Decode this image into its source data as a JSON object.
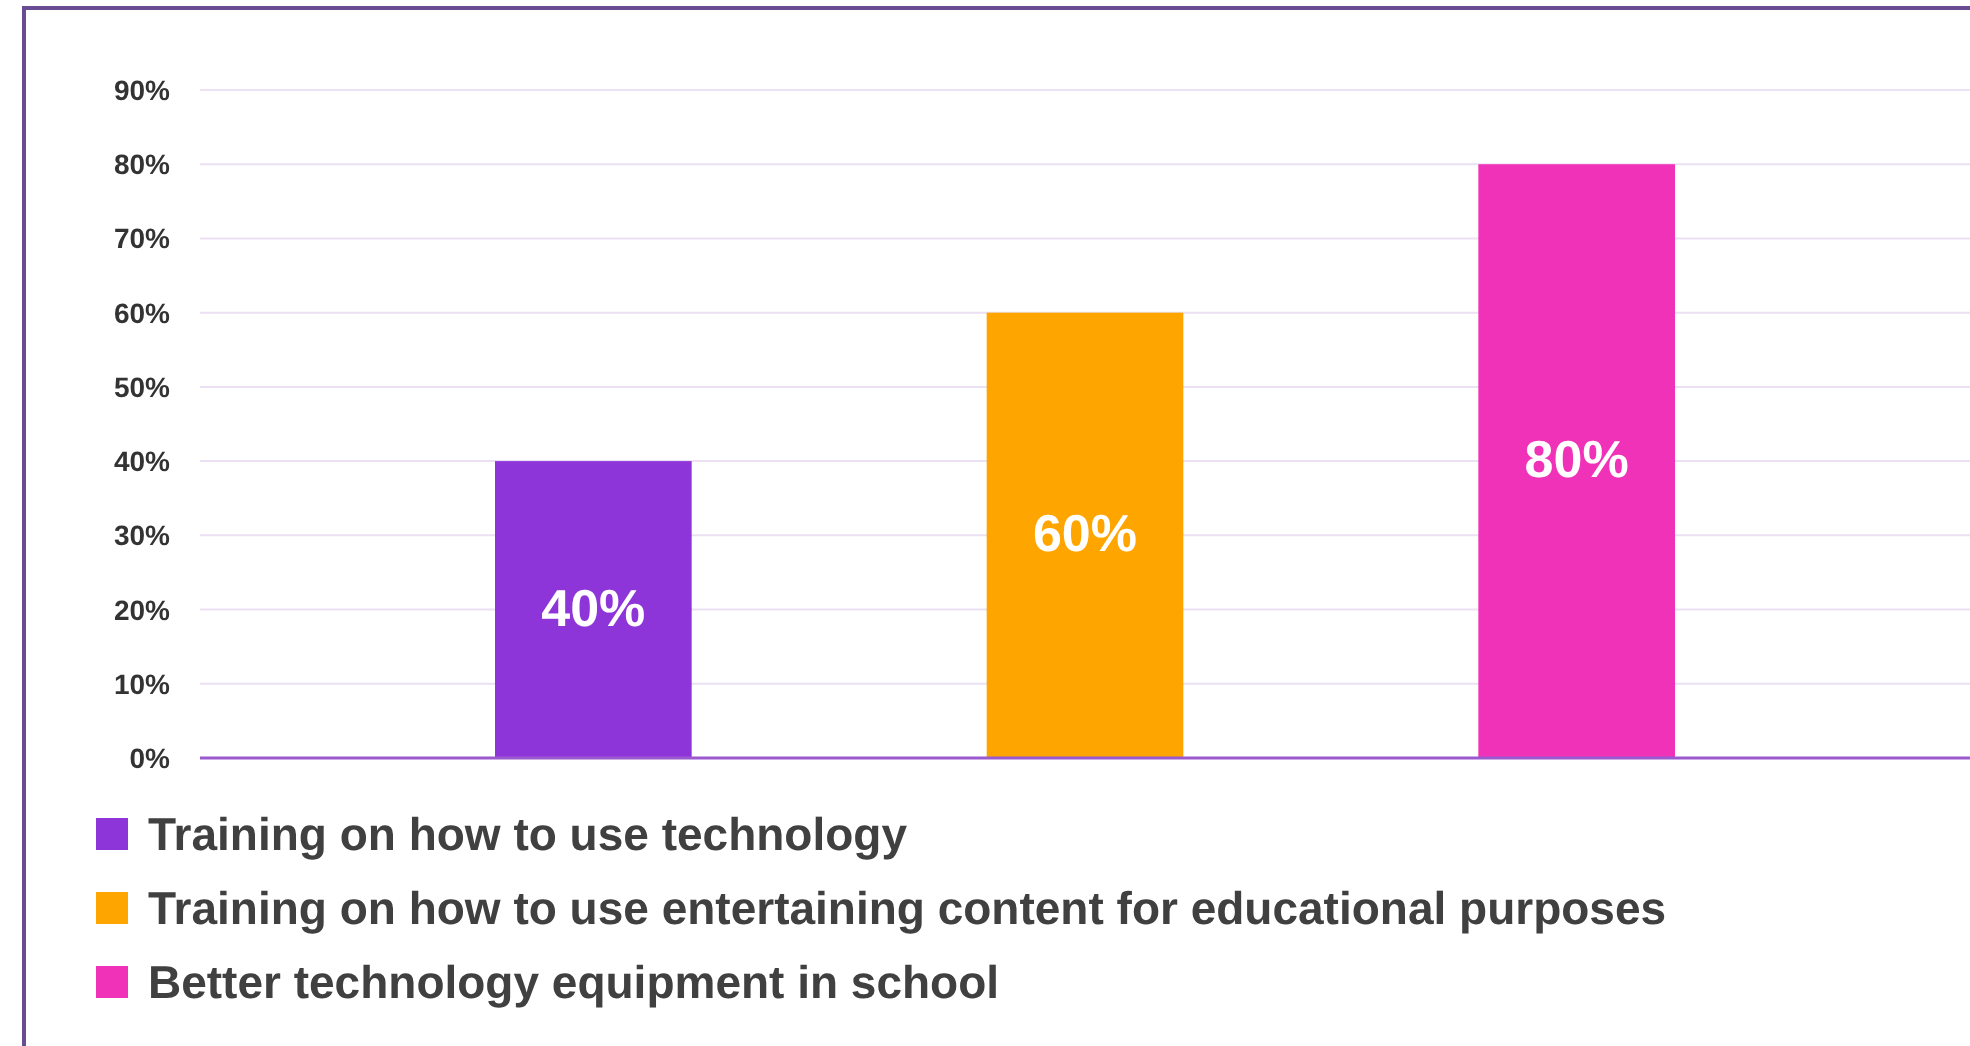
{
  "chart_data": {
    "type": "bar",
    "categories": [
      null,
      null,
      null
    ],
    "series": [
      {
        "name": "Training on how to use technology",
        "color": "#8e35d9",
        "values": [
          40,
          null,
          null
        ],
        "value_labels": [
          "40%",
          null,
          null
        ]
      },
      {
        "name": "Training on how to use entertaining content for educational purposes",
        "color": "#ffa500",
        "values": [
          null,
          60,
          null
        ],
        "value_labels": [
          null,
          "60%",
          null
        ]
      },
      {
        "name": "Better technology equipment in school",
        "color": "#f032b8",
        "values": [
          null,
          null,
          80
        ],
        "value_labels": [
          null,
          null,
          "80%"
        ]
      }
    ],
    "ylim": [
      0,
      90
    ],
    "yticks": [
      {
        "value": 0,
        "label": "0%"
      },
      {
        "value": 10,
        "label": "10%"
      },
      {
        "value": 20,
        "label": "20%"
      },
      {
        "value": 30,
        "label": "30%"
      },
      {
        "value": 40,
        "label": "40%"
      },
      {
        "value": 50,
        "label": "50%"
      },
      {
        "value": 60,
        "label": "60%"
      },
      {
        "value": 70,
        "label": "70%"
      },
      {
        "value": 80,
        "label": "80%"
      },
      {
        "value": 90,
        "label": "90%"
      }
    ],
    "grid": "y",
    "legend": "bottom"
  }
}
